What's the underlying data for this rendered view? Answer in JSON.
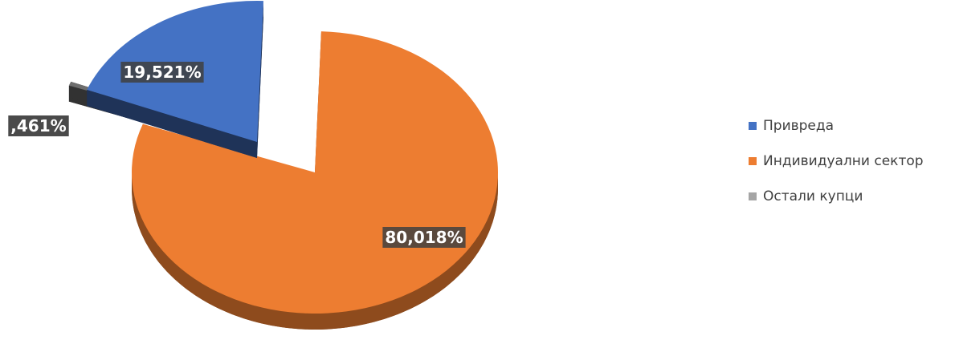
{
  "chart_data": {
    "type": "pie",
    "variant": "exploded-3d",
    "title": "",
    "legend_position": "right",
    "series": [
      {
        "values": [
          19.521,
          80.018,
          0.461
        ],
        "labels": [
          "19,521%",
          "80,018%",
          ",461%"
        ]
      }
    ],
    "categories": [
      "Привреда",
      "Индивидуални сектор",
      "Остали купци"
    ],
    "colors": [
      "#4472C4",
      "#ED7D31",
      "#6E6E6E"
    ]
  },
  "legend": {
    "items": [
      {
        "label": "Привреда",
        "color": "#4472C4"
      },
      {
        "label": "Индивидуални сектор",
        "color": "#ED7D31"
      },
      {
        "label": "Остали купци",
        "color": "#A5A5A5"
      }
    ]
  }
}
